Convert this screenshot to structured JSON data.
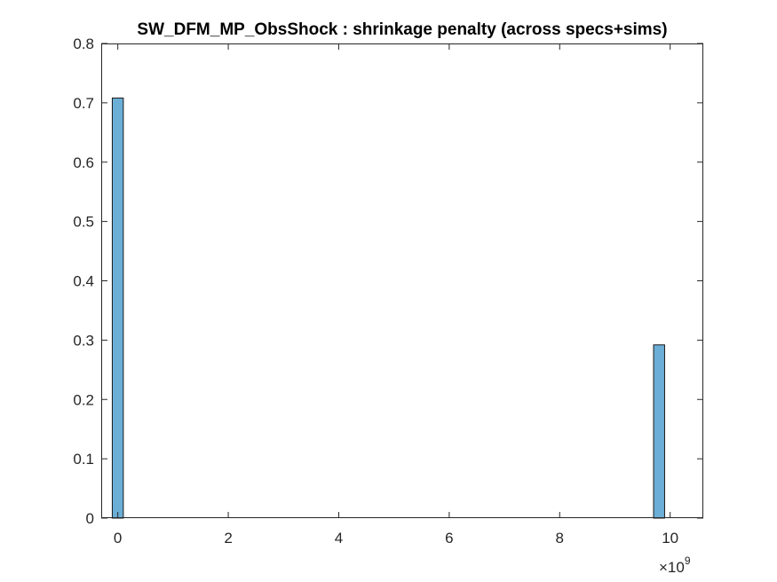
{
  "chart_data": {
    "type": "bar",
    "title": "SW_DFM_MP_ObsShock : shrinkage penalty (across specs+sims)",
    "xlabel": "",
    "ylabel": "",
    "x_multiplier_label": {
      "symbol": "×10",
      "power": "9"
    },
    "xlim": [
      -0.3,
      10.6
    ],
    "ylim": [
      0,
      0.8
    ],
    "xticks": [
      0,
      2,
      4,
      6,
      8,
      10
    ],
    "xtick_labels": [
      "0",
      "2",
      "4",
      "6",
      "8",
      "10"
    ],
    "yticks": [
      0,
      0.1,
      0.2,
      0.3,
      0.4,
      0.5,
      0.6,
      0.7,
      0.8
    ],
    "ytick_labels": [
      "0",
      "0.1",
      "0.2",
      "0.3",
      "0.4",
      "0.5",
      "0.6",
      "0.7",
      "0.8"
    ],
    "bin_width": 0.2,
    "bins": [
      {
        "center": 0.0,
        "value": 0.708
      },
      {
        "center": 9.8,
        "value": 0.292
      }
    ],
    "bar_color": "#6baed6",
    "edge_color": "#1a1a1a",
    "grid": false,
    "legend": "none"
  }
}
